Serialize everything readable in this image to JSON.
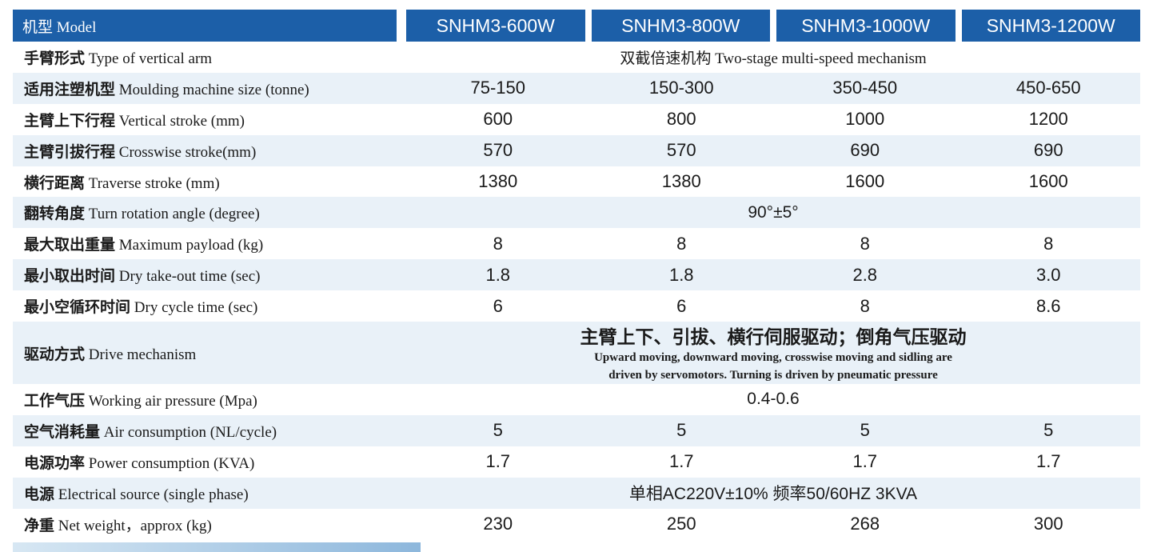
{
  "header": {
    "label": "机型 Model",
    "models": [
      "SNHM3-600W",
      "SNHM3-800W",
      "SNHM3-1000W",
      "SNHM3-1200W"
    ]
  },
  "rows": [
    {
      "zh": "手臂形式",
      "en": "Type of vertical arm",
      "span": "双截倍速机构 Two-stage multi-speed mechanism"
    },
    {
      "zh": "适用注塑机型",
      "en": "Moulding machine size (tonne)",
      "values": [
        "75-150",
        "150-300",
        "350-450",
        "450-650"
      ]
    },
    {
      "zh": "主臂上下行程",
      "en": "Vertical stroke (mm)",
      "values": [
        "600",
        "800",
        "1000",
        "1200"
      ]
    },
    {
      "zh": "主臂引拔行程",
      "en": "Crosswise stroke(mm)",
      "values": [
        "570",
        "570",
        "690",
        "690"
      ]
    },
    {
      "zh": "横行距离",
      "en": "Traverse stroke (mm)",
      "values": [
        "1380",
        "1380",
        "1600",
        "1600"
      ]
    },
    {
      "zh": "翻转角度",
      "en": "Turn rotation angle (degree)",
      "span": "90°±5°"
    },
    {
      "zh": "最大取出重量",
      "en": "Maximum payload (kg)",
      "values": [
        "8",
        "8",
        "8",
        "8"
      ]
    },
    {
      "zh": "最小取出时间",
      "en": "Dry take-out time (sec)",
      "values": [
        "1.8",
        "1.8",
        "2.8",
        "3.0"
      ]
    },
    {
      "zh": "最小空循环时间",
      "en": "Dry cycle time (sec)",
      "values": [
        "6",
        "6",
        "8",
        "8.6"
      ]
    },
    {
      "zh": "驱动方式",
      "en": "Drive mechanism",
      "span_zh": "主臂上下、引拔、横行伺服驱动；倒角气压驱动",
      "span_en1": "Upward moving, downward moving, crosswise moving and sidling are",
      "span_en2": "driven by servomotors. Turning is driven by pneumatic pressure"
    },
    {
      "zh": "工作气压",
      "en": "Working air pressure (Mpa)",
      "span": "0.4-0.6"
    },
    {
      "zh": "空气消耗量",
      "en": "Air consumption (NL/cycle)",
      "values": [
        "5",
        "5",
        "5",
        "5"
      ]
    },
    {
      "zh": "电源功率",
      "en": "Power consumption (KVA)",
      "values": [
        "1.7",
        "1.7",
        "1.7",
        "1.7"
      ]
    },
    {
      "zh": "电源",
      "en": "Electrical source (single phase)",
      "span": "单相AC220V±10% 频率50/60HZ 3KVA"
    },
    {
      "zh": "净重",
      "en": "Net weight，approx (kg)",
      "values": [
        "230",
        "250",
        "268",
        "300"
      ]
    }
  ],
  "colors": {
    "header_bg": "#1c5fa8",
    "stripe": "#e9f1f8"
  }
}
